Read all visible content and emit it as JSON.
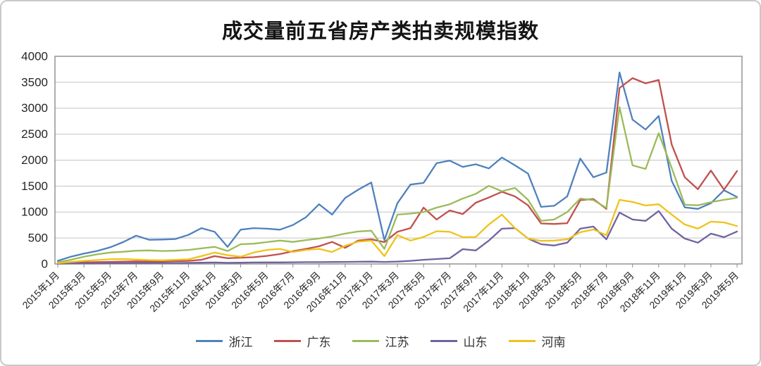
{
  "chart_data": {
    "type": "line",
    "title": "成交量前五省房产类拍卖规模指数",
    "xlabel": "",
    "ylabel": "",
    "ylim": [
      0,
      4000
    ],
    "yticks": [
      0,
      500,
      1000,
      1500,
      2000,
      2500,
      3000,
      3500,
      4000
    ],
    "grid": "horizontal",
    "legend_position": "bottom",
    "x_label_step": 2,
    "xlabels": [
      "2015年1月",
      "2015年3月",
      "2015年5月",
      "2015年7月",
      "2015年9月",
      "2015年11月",
      "2016年1月",
      "2016年3月",
      "2016年5月",
      "2016年7月",
      "2016年9月",
      "2016年11月",
      "2017年1月",
      "2017年3月",
      "2017年5月",
      "2017年7月",
      "2017年9月",
      "2017年11月",
      "2018年1月",
      "2018年3月",
      "2018年5月",
      "2018年7月",
      "2018年9月",
      "2018年11月",
      "2019年1月",
      "2019年3月",
      "2019年5月"
    ],
    "series": [
      {
        "id": "zhejiang",
        "name": "浙江",
        "color": "#4F81BD",
        "values": [
          60,
          140,
          200,
          250,
          320,
          420,
          545,
          465,
          470,
          480,
          560,
          690,
          620,
          330,
          660,
          690,
          680,
          660,
          750,
          900,
          1150,
          950,
          1270,
          1430,
          1570,
          460,
          1170,
          1530,
          1560,
          1940,
          1990,
          1870,
          1920,
          1840,
          2050,
          1900,
          1740,
          1100,
          1120,
          1300,
          2030,
          1670,
          1760,
          3690,
          2780,
          2590,
          2850,
          1600,
          1090,
          1060,
          1170,
          1420,
          1290
        ]
      },
      {
        "id": "guangdong",
        "name": "广东",
        "color": "#C0504D",
        "values": [
          20,
          25,
          30,
          35,
          40,
          45,
          50,
          45,
          50,
          55,
          60,
          80,
          150,
          110,
          120,
          130,
          155,
          190,
          245,
          290,
          340,
          425,
          310,
          450,
          475,
          420,
          620,
          690,
          1085,
          855,
          1030,
          960,
          1180,
          1280,
          1390,
          1300,
          1130,
          780,
          770,
          785,
          1230,
          1250,
          1060,
          3390,
          3580,
          3480,
          3545,
          2300,
          1670,
          1440,
          1800,
          1430,
          1790
        ]
      },
      {
        "id": "jiangsu",
        "name": "江苏",
        "color": "#9BBB59",
        "values": [
          30,
          80,
          140,
          185,
          220,
          235,
          255,
          260,
          250,
          255,
          270,
          300,
          330,
          250,
          380,
          390,
          420,
          450,
          425,
          460,
          490,
          530,
          585,
          625,
          640,
          290,
          950,
          970,
          1000,
          1085,
          1150,
          1260,
          1350,
          1505,
          1400,
          1465,
          1235,
          830,
          855,
          1000,
          1260,
          1230,
          1080,
          3020,
          1900,
          1830,
          2520,
          1850,
          1140,
          1130,
          1190,
          1235,
          1275
        ]
      },
      {
        "id": "shandong",
        "name": "山东",
        "color": "#71639E",
        "values": [
          5,
          8,
          10,
          12,
          15,
          15,
          18,
          18,
          20,
          20,
          22,
          25,
          28,
          22,
          25,
          28,
          30,
          30,
          32,
          35,
          35,
          38,
          40,
          42,
          45,
          40,
          45,
          60,
          80,
          95,
          110,
          285,
          260,
          450,
          680,
          690,
          490,
          380,
          355,
          410,
          680,
          720,
          475,
          990,
          855,
          830,
          1020,
          680,
          490,
          410,
          585,
          515,
          625
        ]
      },
      {
        "id": "henan",
        "name": "河南",
        "color": "#EFC319",
        "values": [
          15,
          40,
          60,
          75,
          90,
          95,
          85,
          75,
          70,
          80,
          90,
          150,
          220,
          170,
          140,
          220,
          270,
          290,
          230,
          270,
          290,
          230,
          350,
          430,
          450,
          150,
          555,
          450,
          520,
          630,
          620,
          515,
          520,
          760,
          950,
          690,
          490,
          445,
          450,
          475,
          610,
          665,
          555,
          1235,
          1195,
          1125,
          1150,
          950,
          760,
          680,
          815,
          800,
          730
        ]
      }
    ]
  }
}
